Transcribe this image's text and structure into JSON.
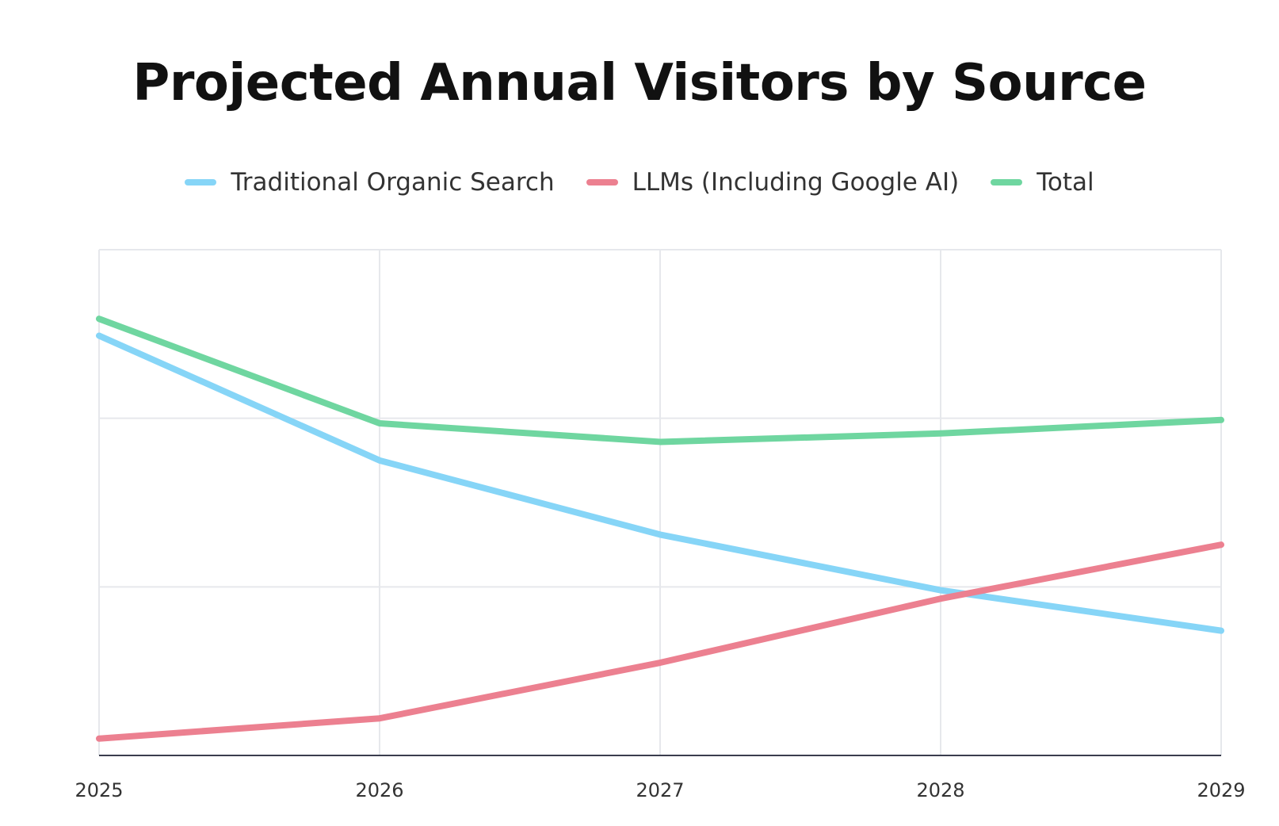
{
  "chart_data": {
    "type": "line",
    "title": "Projected Annual Visitors by Source",
    "xlabel": "",
    "ylabel": "",
    "categories": [
      "2025",
      "2026",
      "2027",
      "2028",
      "2029"
    ],
    "ylim": [
      0,
      3
    ],
    "y_gridlines": [
      0,
      1,
      2,
      3
    ],
    "y_tick_labels_shown": false,
    "grid": true,
    "legend_position": "top",
    "series": [
      {
        "name": "Traditional Organic Search",
        "color": "#86d5f7",
        "values": [
          2.49,
          1.75,
          1.31,
          0.98,
          0.74
        ]
      },
      {
        "name": "LLMs (Including Google AI)",
        "color": "#ec8090",
        "values": [
          0.1,
          0.22,
          0.55,
          0.93,
          1.25
        ]
      },
      {
        "name": "Total",
        "color": "#6fd6a0",
        "values": [
          2.59,
          1.97,
          1.86,
          1.91,
          1.99
        ]
      }
    ]
  }
}
